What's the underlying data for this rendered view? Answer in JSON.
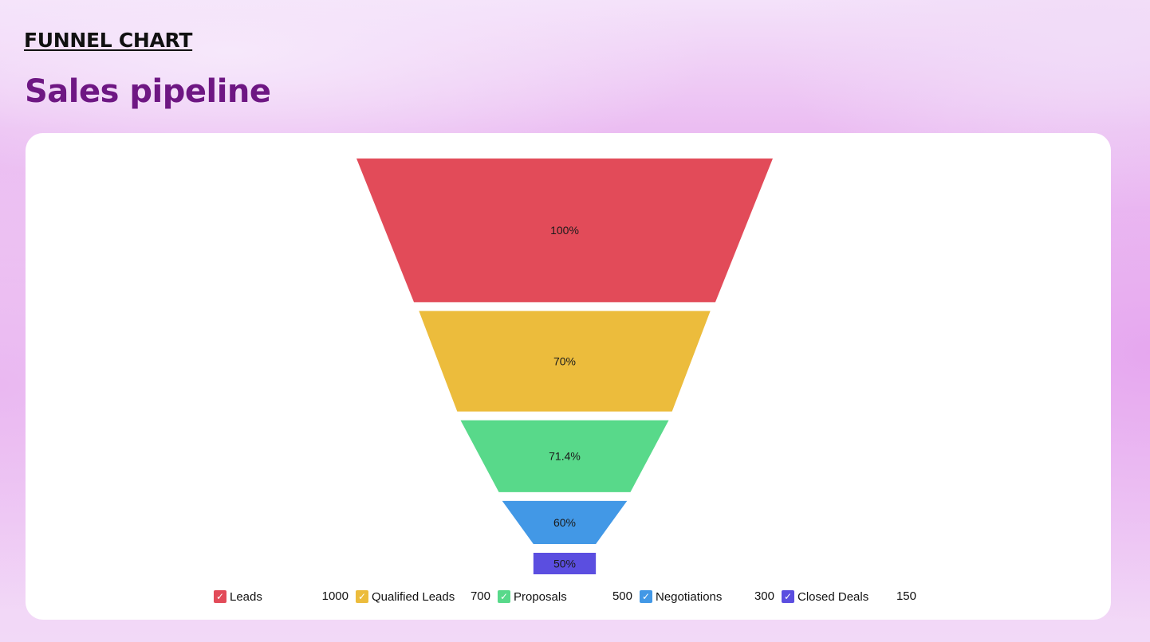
{
  "header": {
    "kicker": "FUNNEL CHART",
    "title": "Sales pipeline"
  },
  "chart_data": {
    "type": "funnel",
    "title": "",
    "stages": [
      {
        "name": "Leads",
        "value": 1000,
        "percent_label": "100%",
        "color": "#e24b59"
      },
      {
        "name": "Qualified Leads",
        "value": 700,
        "percent_label": "70%",
        "color": "#ecbc3c"
      },
      {
        "name": "Proposals",
        "value": 500,
        "percent_label": "71.4%",
        "color": "#58d98a"
      },
      {
        "name": "Negotiations",
        "value": 300,
        "percent_label": "60%",
        "color": "#4298e6"
      },
      {
        "name": "Closed Deals",
        "value": 150,
        "percent_label": "50%",
        "color": "#5b4ee0"
      }
    ],
    "legend_placement": "bottom",
    "legend_check_icon": "check-icon"
  }
}
